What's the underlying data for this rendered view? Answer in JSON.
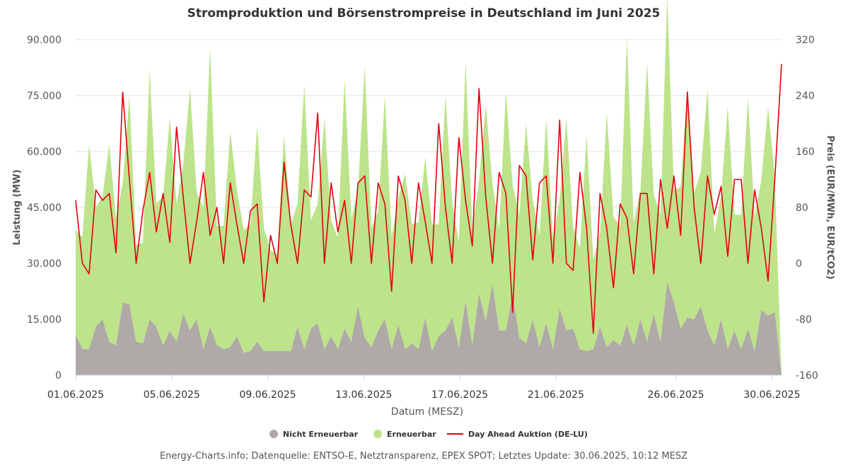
{
  "chart_data": {
    "type": "area",
    "title": "Stromproduktion und Börsenstrompreise in Deutschland im Juni 2025",
    "xlabel": "Datum (MESZ)",
    "ylabel_left": "Leistung (MW)",
    "ylabel_right": "Preis (EUR/MWh, EUR/tCO2)",
    "x_tick_labels": [
      "01.06.2025",
      "05.06.2025",
      "09.06.2025",
      "13.06.2025",
      "17.06.2025",
      "21.06.2025",
      "26.06.2025",
      "30.06.2025"
    ],
    "y_left_ticks": [
      "0",
      "15.000",
      "30.000",
      "45.000",
      "60.000",
      "75.000",
      "90.000"
    ],
    "y_left_lim": [
      0,
      90000
    ],
    "y_right_ticks": [
      "-160",
      "-80",
      "0",
      "80",
      "160",
      "240",
      "320"
    ],
    "y_right_lim": [
      -160,
      320
    ],
    "grid": true,
    "legend_position": "bottom",
    "x_range_days": [
      0,
      29.4
    ],
    "colors": {
      "nicht_erneuerbar": "#afa9a7",
      "erneuerbar": "#bde38b",
      "day_ahead": "#e3000f"
    },
    "series": [
      {
        "name": "Nicht Erneuerbar",
        "type": "area",
        "axis": "left",
        "unit": "MW",
        "x_day_range": [
          0,
          29.4
        ],
        "sample_step_hours": 6,
        "values": [
          11000,
          7000,
          7000,
          13000,
          15000,
          9000,
          8000,
          19500,
          19000,
          9000,
          8500,
          15000,
          13000,
          8000,
          12000,
          9000,
          16500,
          12000,
          15000,
          7000,
          13000,
          8000,
          7000,
          7500,
          10500,
          6000,
          6500,
          9000,
          6500,
          6500,
          6500,
          6500,
          6500,
          13000,
          7000,
          12500,
          14000,
          7000,
          10500,
          7000,
          12500,
          9000,
          18500,
          10000,
          7500,
          12000,
          15000,
          7000,
          13500,
          7000,
          8500,
          7000,
          15500,
          6500,
          10500,
          12000,
          15500,
          7500,
          20000,
          8000,
          22000,
          14500,
          24500,
          12000,
          12000,
          22000,
          10000,
          8500,
          15000,
          7500,
          14000,
          7000,
          18000,
          12000,
          12500,
          7000,
          6500,
          7000,
          13000,
          7500,
          9500,
          8000,
          13500,
          8000,
          15000,
          9000,
          16500,
          9000,
          25000,
          19500,
          12500,
          15500,
          15000,
          18500,
          12000,
          8000,
          15000,
          7000,
          12000,
          7000,
          12500,
          6500,
          17500,
          16000,
          17000,
          0
        ]
      },
      {
        "name": "Erneuerbar",
        "type": "area",
        "axis": "left",
        "unit": "MW",
        "stacked_on": "Nicht Erneuerbar",
        "x_day_range": [
          0,
          29.4
        ],
        "sample_step_hours": 6,
        "values": [
          28000,
          30000,
          55000,
          32000,
          33000,
          53000,
          34000,
          32000,
          56000,
          26000,
          27000,
          67000,
          33000,
          40000,
          57000,
          37000,
          40000,
          65000,
          34000,
          38000,
          75000,
          32000,
          33000,
          58000,
          39000,
          33000,
          34000,
          58000,
          33000,
          27000,
          26000,
          58000,
          34000,
          33000,
          71000,
          29000,
          32000,
          62000,
          31000,
          30000,
          67000,
          33000,
          31000,
          73000,
          32000,
          32000,
          60000,
          30000,
          34000,
          47000,
          32000,
          34000,
          43000,
          34000,
          30000,
          63000,
          31000,
          28000,
          64000,
          31000,
          30000,
          58000,
          27000,
          27000,
          64000,
          29000,
          33000,
          59000,
          32000,
          30000,
          55000,
          30000,
          29000,
          57000,
          27000,
          27000,
          58000,
          24000,
          25000,
          63000,
          33000,
          32000,
          77000,
          33000,
          34000,
          75000,
          32000,
          34000,
          77000,
          30000,
          38000,
          62000,
          34000,
          36000,
          65000,
          30000,
          33000,
          65000,
          31000,
          36000,
          62000,
          36000,
          35000,
          56000,
          36000,
          0
        ]
      },
      {
        "name": "Day Ahead Auktion (DE-LU)",
        "type": "line",
        "axis": "right",
        "unit": "EUR/MWh",
        "x_day_range": [
          0,
          29.4
        ],
        "sample_step_hours": 6,
        "values": [
          90,
          0,
          -15,
          105,
          90,
          100,
          15,
          245,
          120,
          0,
          75,
          130,
          45,
          100,
          30,
          195,
          95,
          0,
          60,
          130,
          40,
          80,
          0,
          115,
          55,
          0,
          75,
          85,
          -55,
          40,
          0,
          145,
          55,
          0,
          105,
          95,
          215,
          0,
          115,
          45,
          90,
          0,
          115,
          125,
          0,
          115,
          85,
          -40,
          125,
          90,
          0,
          115,
          60,
          0,
          200,
          80,
          0,
          180,
          90,
          25,
          250,
          95,
          0,
          130,
          100,
          -70,
          140,
          125,
          5,
          115,
          125,
          0,
          205,
          0,
          -10,
          130,
          50,
          -100,
          100,
          50,
          -35,
          85,
          65,
          -15,
          100,
          100,
          -15,
          120,
          50,
          125,
          40,
          245,
          80,
          0,
          125,
          70,
          110,
          10,
          120,
          120,
          0,
          105,
          50,
          -25,
          120,
          285
        ]
      }
    ],
    "legend": [
      "Nicht Erneuerbar",
      "Erneuerbar",
      "Day Ahead Auktion (DE-LU)"
    ],
    "credit": "Energy-Charts.info; Datenquelle: ENTSO-E, Netztransparenz, EPEX SPOT; Letztes Update: 30.06.2025, 10:12 MESZ"
  }
}
